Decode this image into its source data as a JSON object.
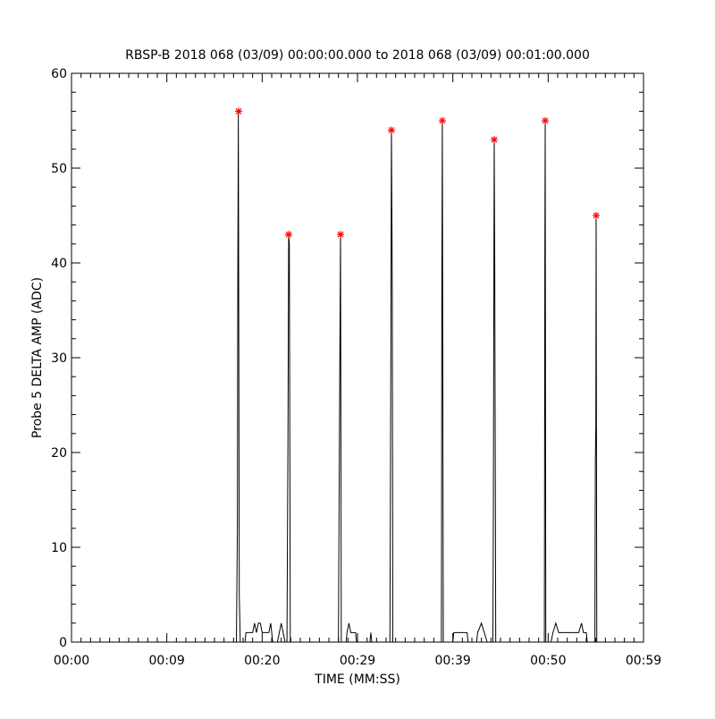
{
  "chart_data": {
    "type": "line",
    "title": "RBSP-B 2018 068 (03/09) 00:00:00.000 to 2018 068 (03/09) 00:01:00.000",
    "x_label": "TIME (MM:SS)",
    "y_label": "Probe 5 DELTA AMP (ADC)",
    "xlim": [
      0,
      60
    ],
    "ylim": [
      0,
      60
    ],
    "xticks": [
      {
        "value": 0,
        "label": "00:00"
      },
      {
        "value": 10,
        "label": "00:09"
      },
      {
        "value": 20,
        "label": "00:20"
      },
      {
        "value": 30,
        "label": "00:29"
      },
      {
        "value": 40,
        "label": "00:39"
      },
      {
        "value": 50,
        "label": "00:50"
      },
      {
        "value": 60,
        "label": "00:59"
      }
    ],
    "yticks": [
      0,
      10,
      20,
      30,
      40,
      50,
      60
    ],
    "x_minor_ticks": 10,
    "y_minor_ticks": 5,
    "series": [
      {
        "color": "#000000",
        "x": [
          0,
          17.3,
          17.4,
          17.45,
          17.5,
          17.6,
          17.7,
          18.2,
          18.3,
          19.0,
          19.2,
          19.4,
          19.6,
          19.8,
          20.0,
          20.7,
          20.9,
          21.1,
          21.6,
          21.8,
          22.0,
          22.2,
          22.4,
          22.6,
          22.7,
          22.78,
          22.85,
          22.95,
          28.0,
          28.1,
          28.22,
          28.3,
          28.8,
          28.9,
          29.1,
          29.3,
          29.8,
          29.9,
          31.3,
          31.4,
          31.5,
          33.4,
          33.5,
          33.56,
          33.65,
          33.7,
          38.8,
          38.85,
          38.9,
          39.0,
          40.0,
          40.1,
          41.5,
          41.6,
          42.5,
          42.6,
          43.0,
          43.3,
          43.6,
          44.2,
          44.25,
          44.34,
          44.4,
          44.5,
          49.6,
          49.65,
          49.69,
          49.75,
          50.3,
          50.5,
          50.8,
          51.1,
          53.2,
          53.5,
          53.7,
          54.0,
          54.1,
          54.9,
          54.95,
          55.0,
          55.03,
          55.1
        ],
        "values": [
          0,
          0,
          12,
          40,
          56,
          5,
          0,
          0,
          1,
          1,
          2,
          1,
          2,
          2,
          1,
          1,
          2,
          0,
          0,
          1,
          2,
          1,
          0,
          0,
          20,
          43,
          42,
          0,
          0,
          21,
          43,
          0,
          0,
          1,
          2,
          1,
          1,
          0,
          0,
          1,
          0,
          0,
          31,
          54,
          37,
          0,
          0,
          39,
          55,
          0,
          0,
          1,
          1,
          0,
          0,
          1,
          2,
          1,
          0,
          0,
          13,
          53,
          39,
          0,
          0,
          40,
          55,
          0,
          0,
          1,
          2,
          1,
          1,
          2,
          1,
          1,
          0,
          0,
          19,
          23,
          45,
          0
        ]
      },
      {
        "color": "#ff0000",
        "marker": "asterisk",
        "x": [
          17.53,
          22.78,
          28.22,
          33.56,
          38.9,
          44.34,
          49.69,
          55.03
        ],
        "values": [
          56,
          43,
          43,
          54,
          55,
          53,
          55,
          45
        ]
      }
    ]
  }
}
